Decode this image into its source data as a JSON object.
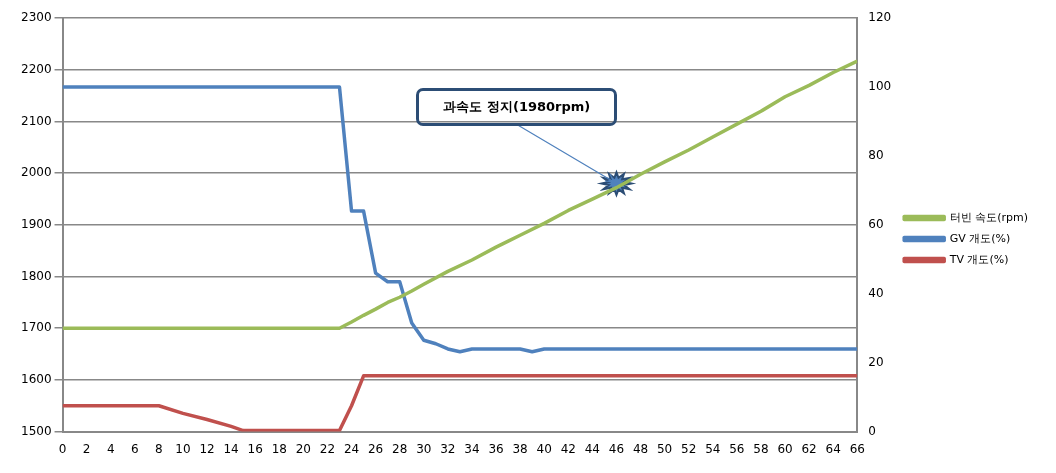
{
  "chart_data": {
    "type": "line",
    "xlim": [
      0,
      66
    ],
    "xticks": [
      0,
      2,
      4,
      6,
      8,
      10,
      12,
      14,
      16,
      18,
      20,
      22,
      24,
      26,
      28,
      30,
      32,
      34,
      36,
      38,
      40,
      42,
      44,
      46,
      48,
      50,
      52,
      54,
      56,
      58,
      60,
      62,
      64,
      66
    ],
    "ylim": [
      1500,
      2300
    ],
    "yticks": [
      1500,
      1600,
      1700,
      1800,
      1900,
      2000,
      2100,
      2200,
      2300
    ],
    "y2lim": [
      0,
      120
    ],
    "y2ticks": [
      0,
      20,
      40,
      60,
      80,
      100,
      120
    ],
    "grid": "y",
    "legend": "right",
    "marker": "none",
    "annotations": [
      {
        "text": "과속도 정지(1980rpm)",
        "x": 46,
        "y": 1980
      }
    ],
    "series": [
      {
        "name": "터빈 속도(rpm)",
        "color": "#9bbb59",
        "x": [
          0,
          23,
          24,
          25,
          26,
          27,
          28,
          29,
          30,
          32,
          34,
          36,
          38,
          40,
          42,
          44,
          46,
          48,
          50,
          52,
          54,
          56,
          58,
          60,
          62,
          64,
          66
        ],
        "values": [
          1700,
          1700,
          1712,
          1725,
          1737,
          1750,
          1760,
          1772,
          1785,
          1810,
          1832,
          1857,
          1880,
          1903,
          1928,
          1950,
          1972,
          1998,
          2022,
          2045,
          2070,
          2095,
          2120,
          2148,
          2170,
          2195,
          2217
        ]
      },
      {
        "name": "GV 개도(%)",
        "color": "#4f81bd",
        "axis": "y2",
        "x": [
          0,
          23,
          24,
          25,
          26,
          27,
          28,
          29,
          30,
          31,
          32,
          33,
          34,
          38,
          39,
          40,
          66
        ],
        "values": [
          100,
          100,
          64,
          64,
          46,
          43.5,
          43.5,
          31.5,
          26.5,
          25.5,
          24,
          23.2,
          24,
          24,
          23.2,
          24,
          24
        ]
      },
      {
        "name": "TV 개도(%)",
        "color": "#c0504d",
        "axis": "y2",
        "x": [
          0,
          8,
          10,
          12,
          14,
          15,
          23,
          24,
          25,
          66
        ],
        "values": [
          7.5,
          7.5,
          5.3,
          3.5,
          1.5,
          0.3,
          0.3,
          7.5,
          16.2,
          16.2
        ]
      }
    ]
  }
}
